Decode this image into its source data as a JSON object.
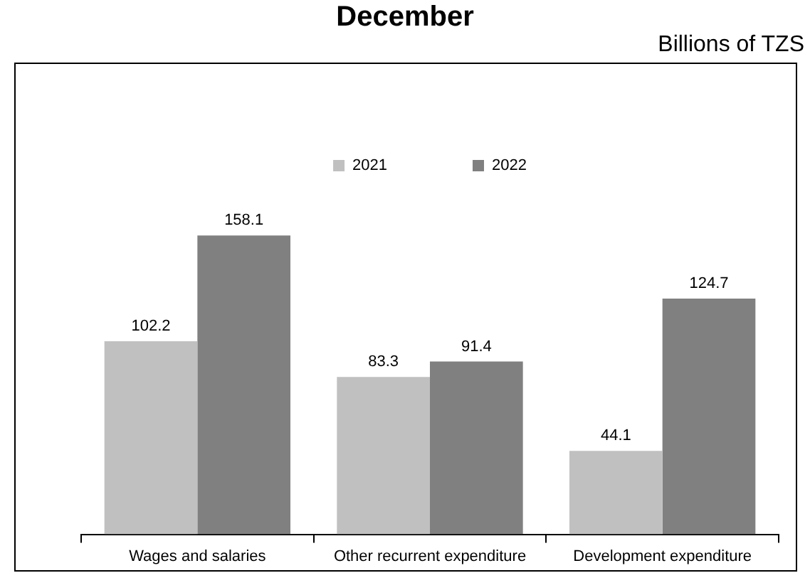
{
  "chart_data": {
    "type": "bar",
    "title": "December",
    "subtitle": "Billions of TZS",
    "categories": [
      "Wages and salaries",
      "Other recurrent expenditure",
      "Development expenditure"
    ],
    "series": [
      {
        "name": "2021",
        "color": "#c0c0c0",
        "values": [
          102.2,
          83.3,
          44.1
        ]
      },
      {
        "name": "2022",
        "color": "#808080",
        "values": [
          158.1,
          91.4,
          124.7
        ]
      }
    ],
    "data_labels": true,
    "legend": "top",
    "grid": false
  }
}
